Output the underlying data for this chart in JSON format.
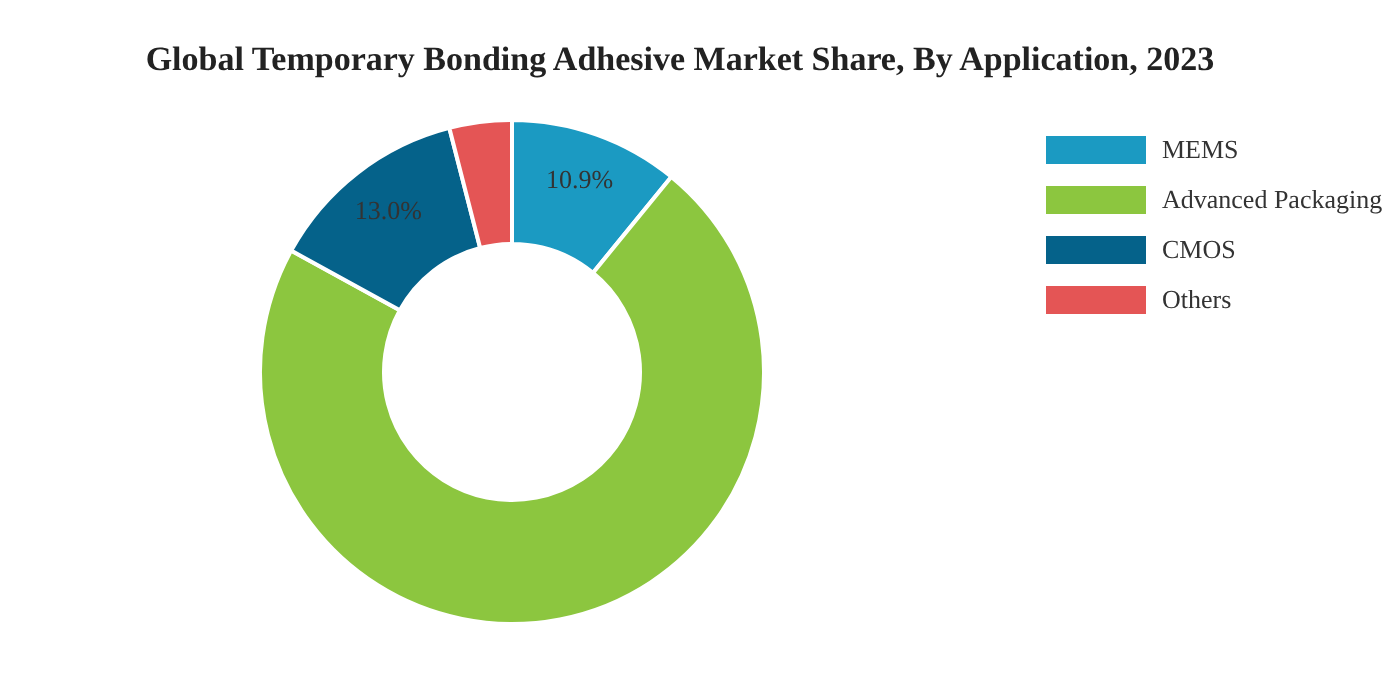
{
  "chart_data": {
    "type": "donut",
    "title": "Global Temporary Bonding Adhesive Market Share, By Application, 2023",
    "categories": [
      "MEMS",
      "Advanced Packaging",
      "CMOS",
      "Others"
    ],
    "values": [
      10.9,
      72.1,
      13.0,
      4.0
    ],
    "colors": [
      "#1b9ac2",
      "#8cc63f",
      "#05628a",
      "#e45555"
    ],
    "value_labels": [
      "10.9%",
      null,
      "13.0%",
      null
    ],
    "legend": "right"
  }
}
